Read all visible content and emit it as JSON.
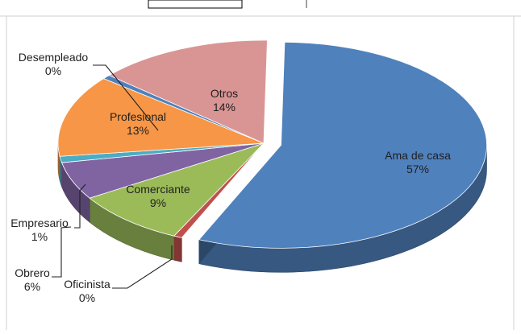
{
  "chart_data": {
    "type": "pie",
    "title": "",
    "categories": [
      "Ama de casa",
      "Oficinista",
      "Comerciante",
      "Obrero",
      "Empresario",
      "Profesional",
      "Desempleado",
      "Otros"
    ],
    "values": [
      57,
      0,
      9,
      6,
      1,
      13,
      0,
      14
    ],
    "percent_labels": [
      "57%",
      "0%",
      "9%",
      "6%",
      "1%",
      "13%",
      "0%",
      "14%"
    ],
    "colors": [
      "#4f81bd",
      "#c0504d",
      "#9bbb59",
      "#8064a2",
      "#4bacc6",
      "#f79646",
      "#4f81bd",
      "#d99594"
    ],
    "exploded": "Ama de casa",
    "style": "3d-pie",
    "legend": "none"
  }
}
